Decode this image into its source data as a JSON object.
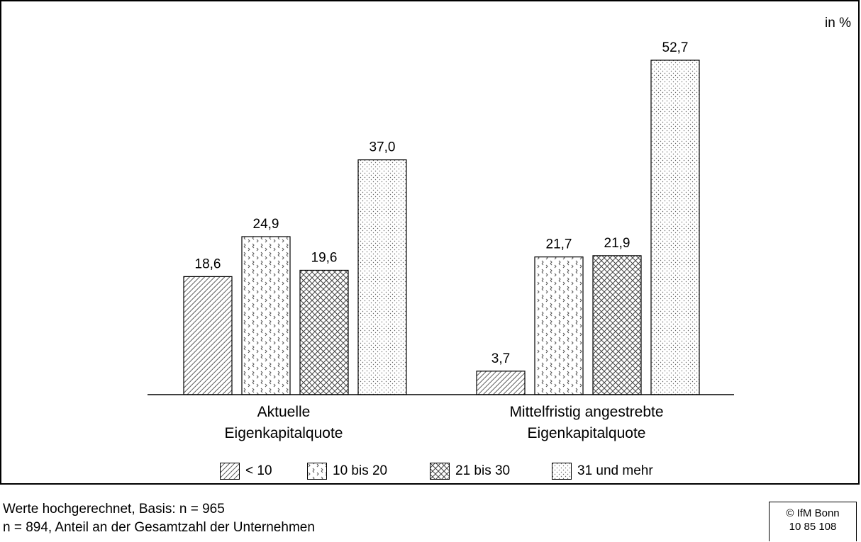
{
  "chart_data": {
    "type": "bar",
    "unit": "in %",
    "categories": [
      "Aktuelle\nEigenkapitalquote",
      "Mittelfristig angestrebte\nEigenkapitalquote"
    ],
    "series": [
      {
        "name": "< 10",
        "values": [
          18.6,
          3.7
        ],
        "labels": [
          "18,6",
          "3,7"
        ],
        "pattern": "diagonal"
      },
      {
        "name": "10 bis 20",
        "values": [
          24.9,
          21.7
        ],
        "labels": [
          "24,9",
          "21,7"
        ],
        "pattern": "chevron"
      },
      {
        "name": "21 bis 30",
        "values": [
          19.6,
          21.9
        ],
        "labels": [
          "19,6",
          "21,9"
        ],
        "pattern": "crosshatch"
      },
      {
        "name": "31 und mehr",
        "values": [
          37.0,
          52.7
        ],
        "labels": [
          "37,0",
          "52,7"
        ],
        "pattern": "dots"
      }
    ],
    "ylim": [
      0,
      60
    ],
    "grid": false,
    "legend_position": "bottom"
  },
  "notes": {
    "line1": "Werte hochgerechnet, Basis: n = 965",
    "line2": "n = 894, Anteil an der Gesamtzahl der Unternehmen"
  },
  "copyright": {
    "line1": "© IfM Bonn",
    "line2": "10 85 108"
  }
}
